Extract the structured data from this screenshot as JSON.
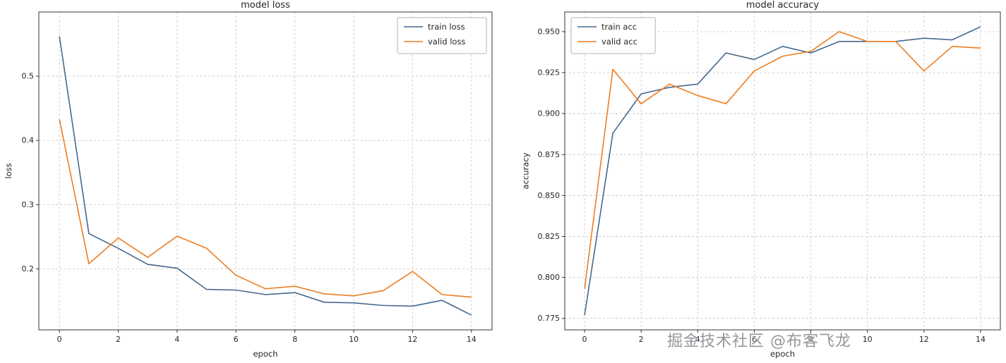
{
  "watermark": {
    "text": "掘金技术社区 @布客飞龙"
  },
  "colors": {
    "train": "#45688e",
    "valid": "#ed7d21",
    "grid": "#cccccc",
    "axis": "#333333"
  },
  "chart_data": [
    {
      "type": "line",
      "title": "model loss",
      "xlabel": "epoch",
      "ylabel": "loss",
      "x": [
        0,
        1,
        2,
        3,
        4,
        5,
        6,
        7,
        8,
        9,
        10,
        11,
        12,
        13,
        14
      ],
      "xlim": [
        -0.7,
        14.7
      ],
      "ylim": [
        0.105,
        0.6
      ],
      "xticks": [
        0,
        2,
        4,
        6,
        8,
        10,
        12,
        14
      ],
      "xtick_labels": [
        "0",
        "2",
        "4",
        "6",
        "8",
        "10",
        "12",
        "14"
      ],
      "yticks": [
        0.2,
        0.3,
        0.4,
        0.5
      ],
      "ytick_labels": [
        "0.2",
        "0.3",
        "0.4",
        "0.5"
      ],
      "grid": true,
      "legend_position": "top-right",
      "series": [
        {
          "name": "train loss",
          "color_key": "train",
          "values": [
            0.562,
            0.255,
            0.232,
            0.207,
            0.201,
            0.168,
            0.167,
            0.16,
            0.163,
            0.148,
            0.147,
            0.143,
            0.142,
            0.151,
            0.128
          ]
        },
        {
          "name": "valid loss",
          "color_key": "valid",
          "values": [
            0.433,
            0.208,
            0.248,
            0.218,
            0.251,
            0.232,
            0.19,
            0.169,
            0.173,
            0.161,
            0.158,
            0.166,
            0.196,
            0.16,
            0.156
          ]
        }
      ]
    },
    {
      "type": "line",
      "title": "model accuracy",
      "xlabel": "epoch",
      "ylabel": "accuracy",
      "x": [
        0,
        1,
        2,
        3,
        4,
        5,
        6,
        7,
        8,
        9,
        10,
        11,
        12,
        13,
        14
      ],
      "xlim": [
        -0.7,
        14.7
      ],
      "ylim": [
        0.768,
        0.962
      ],
      "xticks": [
        0,
        2,
        4,
        6,
        8,
        10,
        12,
        14
      ],
      "xtick_labels": [
        "0",
        "2",
        "4",
        "6",
        "8",
        "10",
        "12",
        "14"
      ],
      "yticks": [
        0.775,
        0.8,
        0.825,
        0.85,
        0.875,
        0.9,
        0.925,
        0.95
      ],
      "ytick_labels": [
        "0.775",
        "0.800",
        "0.825",
        "0.850",
        "0.875",
        "0.900",
        "0.925",
        "0.950"
      ],
      "grid": true,
      "legend_position": "top-left",
      "series": [
        {
          "name": "train acc",
          "color_key": "train",
          "values": [
            0.777,
            0.888,
            0.912,
            0.916,
            0.918,
            0.937,
            0.933,
            0.941,
            0.937,
            0.944,
            0.944,
            0.944,
            0.946,
            0.945,
            0.953
          ]
        },
        {
          "name": "valid acc",
          "color_key": "valid",
          "values": [
            0.793,
            0.927,
            0.906,
            0.918,
            0.911,
            0.906,
            0.926,
            0.935,
            0.938,
            0.95,
            0.944,
            0.944,
            0.926,
            0.941,
            0.94
          ]
        }
      ]
    }
  ]
}
